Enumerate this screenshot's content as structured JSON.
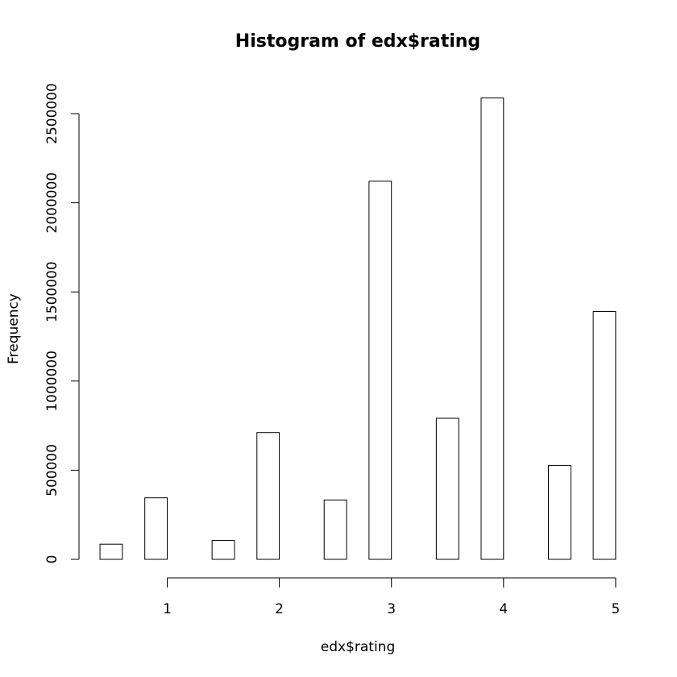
{
  "chart_data": {
    "type": "bar",
    "title": "Histogram of edx$rating",
    "xlabel": "edx$rating",
    "ylabel": "Frequency",
    "ylim": [
      0,
      2500000
    ],
    "xlim": [
      1,
      5
    ],
    "x_ticks": [
      1,
      2,
      3,
      4,
      5
    ],
    "x_tick_labels": [
      "1",
      "2",
      "3",
      "4",
      "5"
    ],
    "y_ticks": [
      0,
      500000,
      1000000,
      1500000,
      2000000,
      2500000
    ],
    "y_tick_labels": [
      "0",
      "500000",
      "1000000",
      "1500000",
      "2000000",
      "2500000"
    ],
    "bins": [
      {
        "start": 0.4,
        "end": 0.6,
        "count": 85000
      },
      {
        "start": 0.8,
        "end": 1.0,
        "count": 345000
      },
      {
        "start": 1.0,
        "end": 1.2,
        "count": 0
      },
      {
        "start": 1.2,
        "end": 1.4,
        "count": 0
      },
      {
        "start": 1.4,
        "end": 1.6,
        "count": 106000
      },
      {
        "start": 1.8,
        "end": 2.0,
        "count": 711000
      },
      {
        "start": 2.0,
        "end": 2.2,
        "count": 0
      },
      {
        "start": 2.2,
        "end": 2.4,
        "count": 0
      },
      {
        "start": 2.4,
        "end": 2.6,
        "count": 333000
      },
      {
        "start": 2.8,
        "end": 3.0,
        "count": 2121000
      },
      {
        "start": 3.0,
        "end": 3.2,
        "count": 0
      },
      {
        "start": 3.2,
        "end": 3.4,
        "count": 0
      },
      {
        "start": 3.4,
        "end": 3.6,
        "count": 791000
      },
      {
        "start": 3.8,
        "end": 4.0,
        "count": 2588000
      },
      {
        "start": 4.0,
        "end": 4.2,
        "count": 0
      },
      {
        "start": 4.2,
        "end": 4.4,
        "count": 0
      },
      {
        "start": 4.4,
        "end": 4.6,
        "count": 527000
      },
      {
        "start": 4.8,
        "end": 5.0,
        "count": 1390000
      }
    ],
    "grid": false,
    "legend": "none"
  }
}
